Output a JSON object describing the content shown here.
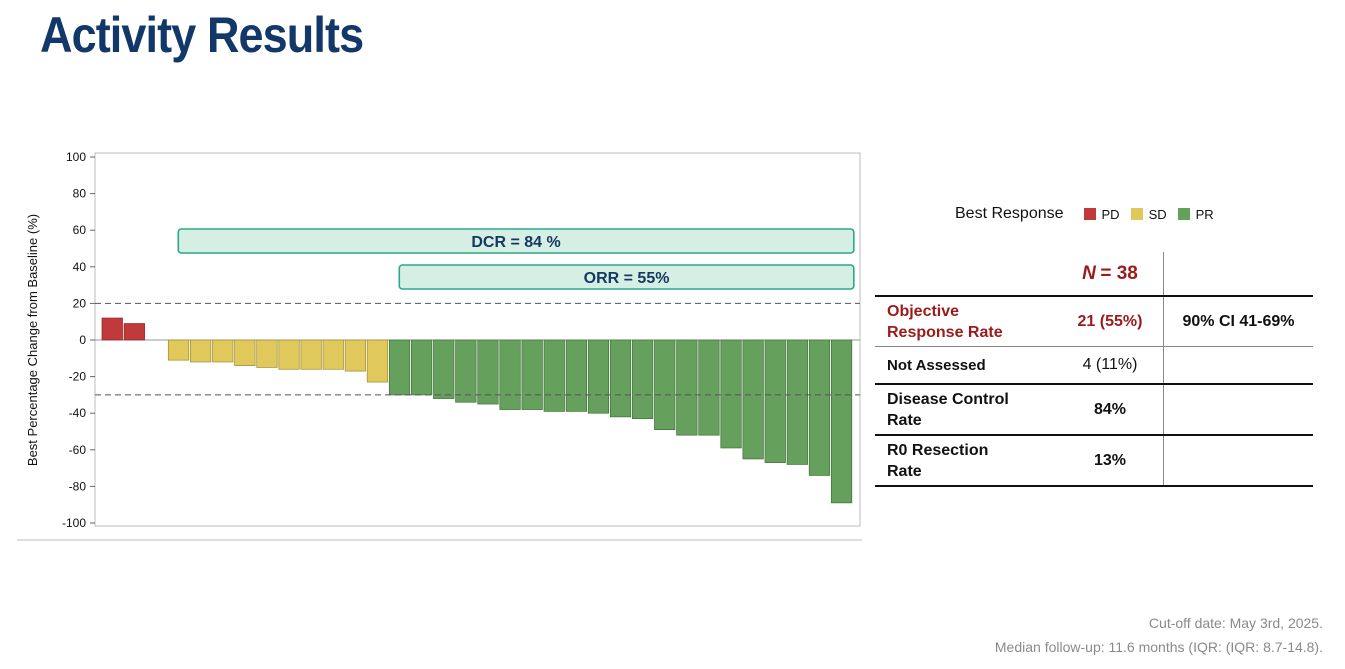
{
  "title": "Activity Results",
  "colors": {
    "title": "#12386a",
    "PD": "#c0393b",
    "SD": "#e0c85a",
    "PR": "#65a15c",
    "box_fill": "#d5efe5",
    "box_border": "#2aa889",
    "box_text": "#14385e",
    "highlight_red": "#9b1b1b"
  },
  "chart_data": {
    "type": "bar",
    "title": "",
    "xlabel": "",
    "ylabel": "Best Percentage Change from Baseline (%)",
    "ylim": [
      -100,
      100
    ],
    "yticks": [
      100,
      80,
      60,
      40,
      20,
      0,
      -20,
      -40,
      -60,
      -80,
      -100
    ],
    "reference_lines": [
      20,
      -30
    ],
    "values": [
      12,
      9,
      null,
      -11,
      -12,
      -12,
      -14,
      -15,
      -16,
      -16,
      -16,
      -17,
      -23,
      -30,
      -30,
      -32,
      -34,
      -35,
      -38,
      -38,
      -39,
      -39,
      -40,
      -42,
      -43,
      -49,
      -52,
      -52,
      -59,
      -65,
      -67,
      -68,
      -74,
      -89
    ],
    "categories": [
      "PD",
      "PD",
      "",
      "SD",
      "SD",
      "SD",
      "SD",
      "SD",
      "SD",
      "SD",
      "SD",
      "SD",
      "SD",
      "PR",
      "PR",
      "PR",
      "PR",
      "PR",
      "PR",
      "PR",
      "PR",
      "PR",
      "PR",
      "PR",
      "PR",
      "PR",
      "PR",
      "PR",
      "PR",
      "PR",
      "PR",
      "PR",
      "PR",
      "PR"
    ],
    "annotations": [
      {
        "label": "DCR = 84 %",
        "from_bar": 3,
        "to_bar": 33
      },
      {
        "label": "ORR = 55%",
        "from_bar": 13,
        "to_bar": 33
      }
    ],
    "legend": {
      "title": "Best Response",
      "entries": [
        {
          "label": "PD",
          "key": "PD"
        },
        {
          "label": "SD",
          "key": "SD"
        },
        {
          "label": "PR",
          "key": "PR"
        }
      ]
    }
  },
  "table": {
    "n_label": "N",
    "n_value": "= 38",
    "rows": [
      {
        "label_line1": "Objective",
        "label_line2": "Response Rate",
        "value": "21 (55%)",
        "ci": "90% CI 41-69%"
      },
      {
        "label": "Not Assessed",
        "value": "4 (11%)",
        "ci": ""
      },
      {
        "label_line1": "Disease Control",
        "label_line2": "Rate",
        "value": "84%",
        "ci": ""
      },
      {
        "label_line1": "R0 Resection",
        "label_line2": "Rate",
        "value": "13%",
        "ci": ""
      }
    ]
  },
  "footnotes": {
    "line1": "Cut-off date: May 3rd, 2025.",
    "line2": "Median follow-up: 11.6 months (IQR: (IQR: 8.7-14.8)."
  }
}
